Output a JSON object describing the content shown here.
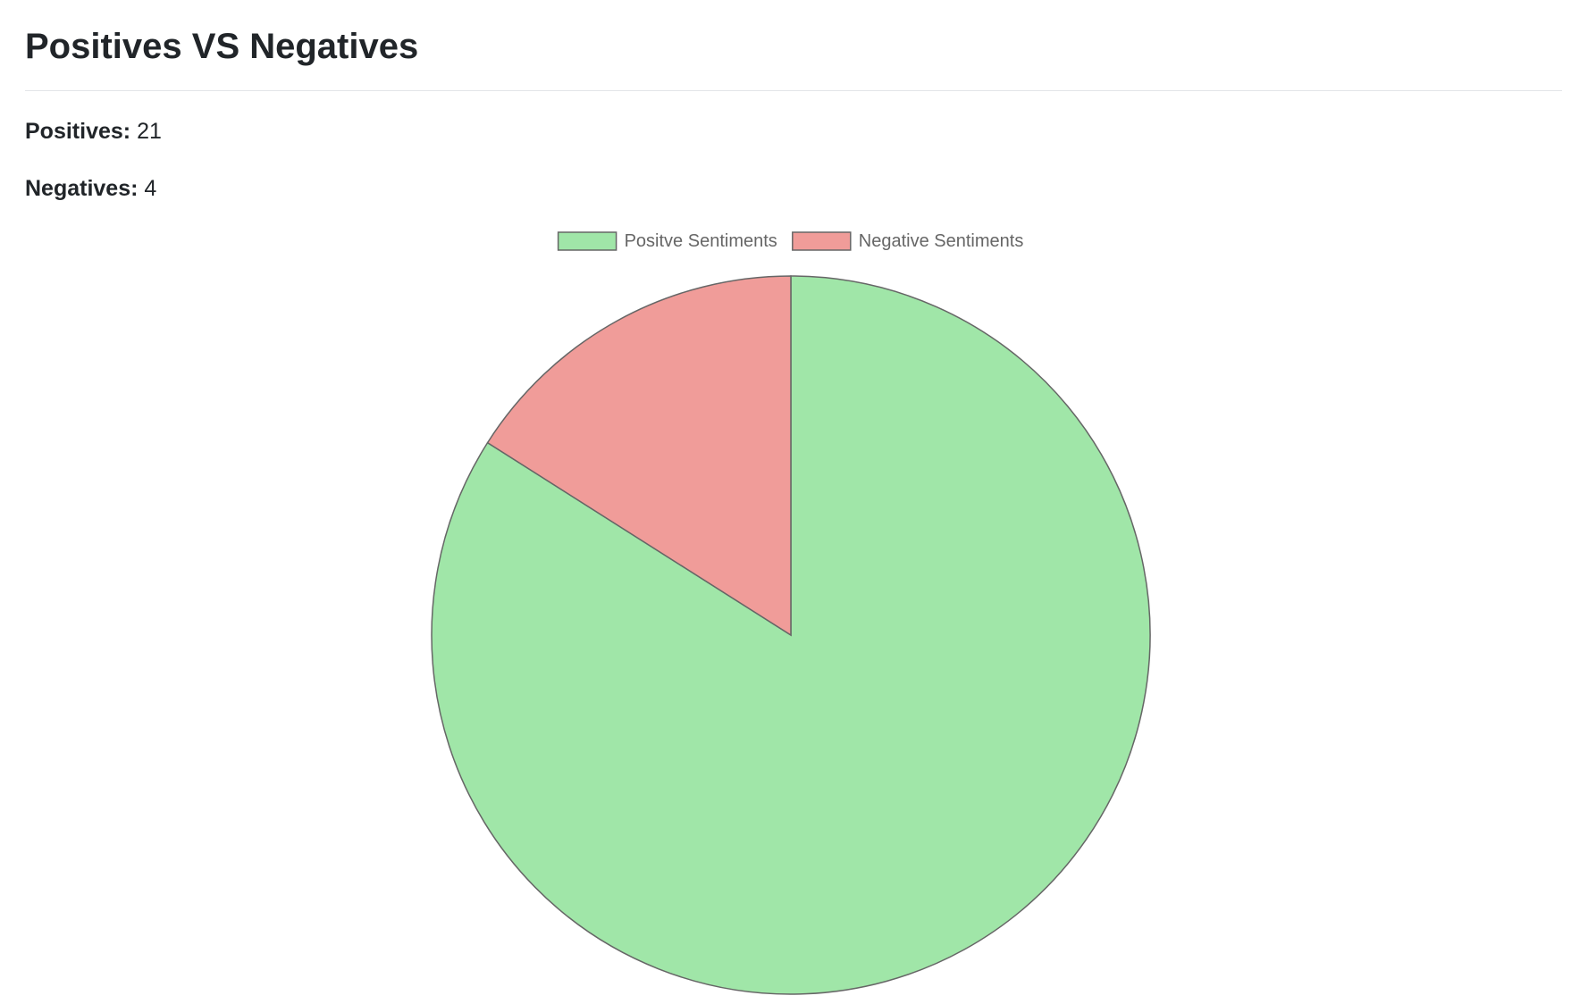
{
  "header": {
    "title": "Positives VS Negatives"
  },
  "stats": {
    "positives_label": "Positives:",
    "positives_value": "21",
    "negatives_label": "Negatives:",
    "negatives_value": "4"
  },
  "chart_data": {
    "type": "pie",
    "title": "",
    "categories": [
      "Positve Sentiments",
      "Negative Sentiments"
    ],
    "values": [
      21,
      4
    ],
    "colors": [
      "#a0e6a8",
      "#f09c99"
    ],
    "border_color": "#666666",
    "legend_placement": "top-center",
    "start_angle": "top",
    "direction": "clockwise"
  }
}
